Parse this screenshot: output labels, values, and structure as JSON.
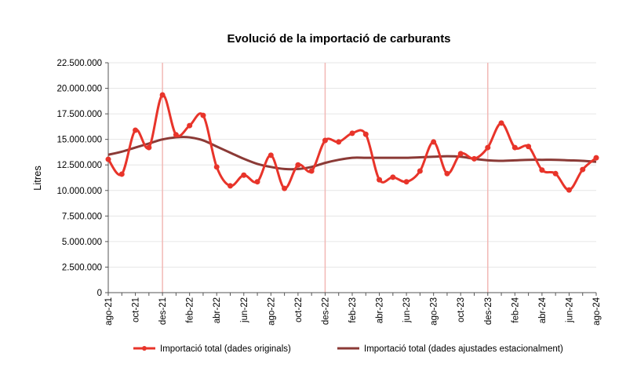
{
  "chart_data": {
    "type": "line",
    "title": "Evolució de la importació de carburants",
    "ylabel": "Litres",
    "xlabel": "",
    "ylim": [
      0,
      22500000
    ],
    "yticks": [
      "0",
      "2.500.000",
      "5.000.000",
      "7.500.000",
      "10.000.000",
      "12.500.000",
      "15.000.000",
      "17.500.000",
      "20.000.000",
      "22.500.000"
    ],
    "x": [
      "ago-21",
      "set-21",
      "oct-21",
      "nov-21",
      "des-21",
      "gen-22",
      "feb-22",
      "mar-22",
      "abr-22",
      "mai-22",
      "jun-22",
      "jul-22",
      "ago-22",
      "set-22",
      "oct-22",
      "nov-22",
      "des-22",
      "gen-23",
      "feb-23",
      "mar-23",
      "abr-23",
      "mai-23",
      "jun-23",
      "jul-23",
      "ago-23",
      "set-23",
      "oct-23",
      "nov-23",
      "des-23",
      "gen-24",
      "feb-24",
      "mar-24",
      "abr-24",
      "mai-24",
      "jun-24",
      "jul-24",
      "ago-24"
    ],
    "xtick_labels": [
      "ago-21",
      "oct-21",
      "des-21",
      "feb-22",
      "abr-22",
      "jun-22",
      "ago-22",
      "oct-22",
      "des-22",
      "feb-23",
      "abr-23",
      "jun-23",
      "ago-23",
      "oct-23",
      "des-23",
      "feb-24",
      "abr-24",
      "jun-24",
      "ago-24"
    ],
    "vlines": [
      "des-21",
      "des-22",
      "des-23"
    ],
    "grid": true,
    "legend_position": "bottom",
    "series": [
      {
        "name": "Importació total (dades originals)",
        "color": "#e8342a",
        "markers": true,
        "values": [
          13050000,
          11600000,
          15900000,
          14200000,
          19350000,
          15450000,
          16350000,
          17350000,
          12300000,
          10450000,
          11500000,
          10850000,
          13450000,
          10200000,
          12500000,
          11900000,
          14900000,
          14750000,
          15600000,
          15500000,
          11050000,
          11300000,
          10850000,
          11900000,
          14750000,
          11650000,
          13600000,
          13100000,
          14200000,
          16600000,
          14200000,
          14300000,
          12000000,
          11650000,
          10050000,
          12050000,
          13200000
        ]
      },
      {
        "name": "Importació total (dades ajustades estacionalment)",
        "color": "#8b3a36",
        "markers": false,
        "values": [
          13500000,
          13800000,
          14200000,
          14600000,
          15000000,
          15200000,
          15200000,
          14900000,
          14300000,
          13700000,
          13100000,
          12600000,
          12300000,
          12100000,
          12100000,
          12300000,
          12700000,
          13000000,
          13200000,
          13200000,
          13200000,
          13200000,
          13200000,
          13250000,
          13300000,
          13350000,
          13300000,
          13100000,
          12950000,
          12900000,
          12950000,
          13000000,
          13000000,
          13000000,
          12950000,
          12900000,
          12800000
        ]
      }
    ]
  }
}
